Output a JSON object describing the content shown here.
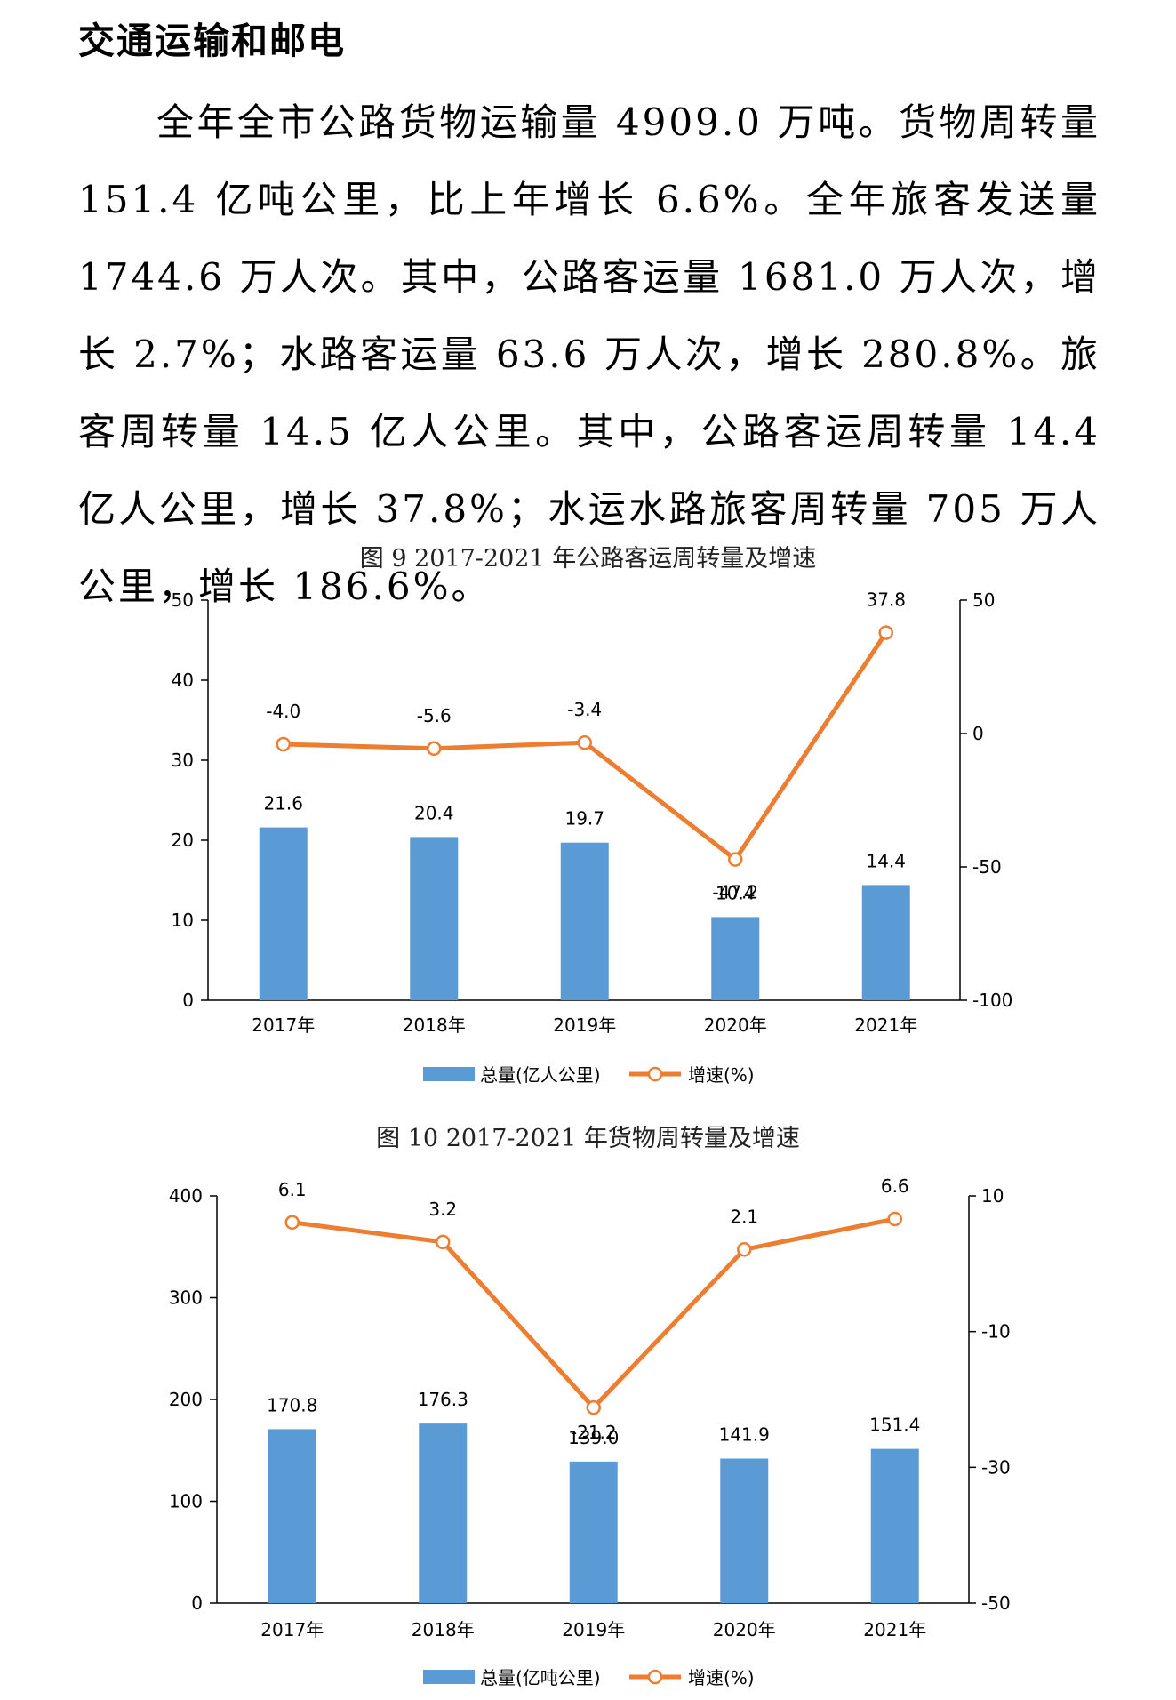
{
  "section_title": "交通运输和邮电",
  "paragraph": "全年全市公路货物运输量 4909.0 万吨。货物周转量 151.4 亿吨公里，比上年增长 6.6%。全年旅客发送量 1744.6 万人次。其中，公路客运量 1681.0 万人次，增长 2.7%；水路客运量 63.6 万人次，增长 280.8%。旅客周转量 14.5 亿人公里。其中，公路客运周转量 14.4 亿人公里，增长 37.8%；水运水路旅客周转量 705 万人公里，增长 186.6%。",
  "colors": {
    "bar": "#5b9bd5",
    "line": "#ed7d31"
  },
  "chart_data": [
    {
      "type": "bar",
      "title": "图 9  2017-2021 年公路客运周转量及增速",
      "categories": [
        "2017年",
        "2018年",
        "2019年",
        "2020年",
        "2021年"
      ],
      "series": [
        {
          "name": "总量(亿人公里)",
          "type": "bar",
          "axis": "left",
          "values": [
            21.6,
            20.4,
            19.7,
            10.4,
            14.4
          ]
        },
        {
          "name": "增速(%)",
          "type": "line",
          "axis": "right",
          "values": [
            -4.0,
            -5.6,
            -3.4,
            -47.2,
            37.8
          ]
        }
      ],
      "value_labels": {
        "bar": [
          "21.6",
          "20.4",
          "19.7",
          "10.4",
          "14.4"
        ],
        "line": [
          "-4.0",
          "-5.6",
          "-3.4",
          "-47.2",
          "37.8"
        ]
      },
      "ylim_left": [
        0,
        50
      ],
      "yticks_left": [
        "0",
        "10",
        "20",
        "30",
        "40",
        "50"
      ],
      "ylim_right": [
        -100,
        50
      ],
      "yticks_right": [
        "-100",
        "-50",
        "0",
        "50"
      ],
      "legend_position": "bottom",
      "grid": false
    },
    {
      "type": "bar",
      "title": "图 10  2017-2021 年货物周转量及增速",
      "categories": [
        "2017年",
        "2018年",
        "2019年",
        "2020年",
        "2021年"
      ],
      "series": [
        {
          "name": "总量(亿吨公里)",
          "type": "bar",
          "axis": "left",
          "values": [
            170.8,
            176.3,
            139.0,
            141.9,
            151.4
          ]
        },
        {
          "name": "增速(%)",
          "type": "line",
          "axis": "right",
          "values": [
            6.1,
            3.2,
            -21.2,
            2.1,
            6.6
          ]
        }
      ],
      "value_labels": {
        "bar": [
          "170.8",
          "176.3",
          "139.0",
          "141.9",
          "151.4"
        ],
        "line": [
          "6.1",
          "3.2",
          "-21.2",
          "2.1",
          "6.6"
        ]
      },
      "ylim_left": [
        0,
        400
      ],
      "yticks_left": [
        "0",
        "100",
        "200",
        "300",
        "400"
      ],
      "ylim_right": [
        -50,
        10
      ],
      "yticks_right": [
        "-50",
        "-30",
        "-10",
        "10"
      ],
      "legend_position": "bottom",
      "grid": false
    }
  ]
}
